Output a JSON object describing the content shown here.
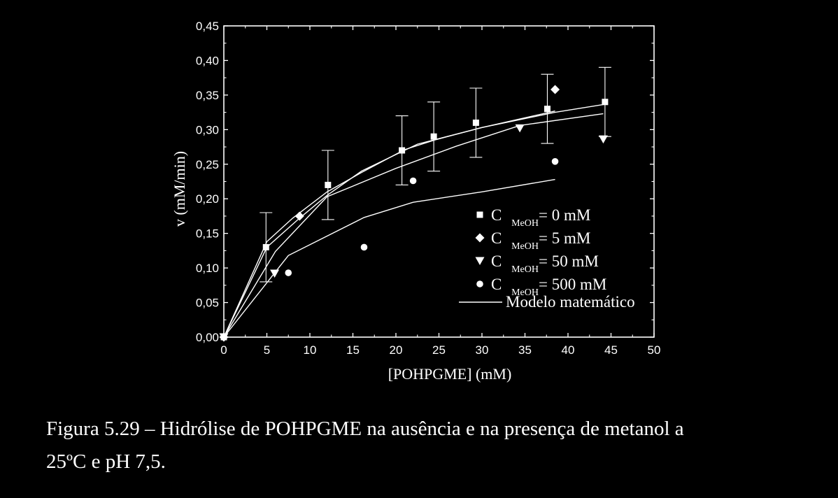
{
  "chart_data": {
    "type": "scatter",
    "xlabel": "[POHPGME] (mM)",
    "ylabel": "v (mM/min)",
    "xlim": [
      0,
      50
    ],
    "ylim": [
      0,
      0.45
    ],
    "xticks": [
      0,
      5,
      10,
      15,
      20,
      25,
      30,
      35,
      40,
      45,
      50
    ],
    "yticks": [
      0,
      0.05,
      0.1,
      0.15,
      0.2,
      0.25,
      0.3,
      0.35,
      0.4,
      0.45
    ],
    "xtick_labels": [
      "0",
      "5",
      "10",
      "15",
      "20",
      "25",
      "30",
      "35",
      "40",
      "45",
      "50"
    ],
    "ytick_labels": [
      "0,00",
      "0,05",
      "0,10",
      "0,15",
      "0,20",
      "0,25",
      "0,30",
      "0,35",
      "0,40",
      "0,45"
    ],
    "grid": false,
    "legend_position": "bottom-right",
    "series": [
      {
        "label_main": "C ",
        "label_sub": "MeOH",
        "label_rest": "= 0 mM",
        "marker": "square",
        "x": [
          0,
          4.9,
          12.1,
          20.7,
          24.4,
          29.3,
          37.6,
          44.3
        ],
        "y": [
          0,
          0.13,
          0.22,
          0.27,
          0.29,
          0.31,
          0.33,
          0.34
        ],
        "error": [
          0,
          0.05,
          0.05,
          0.05,
          0.05,
          0.05,
          0.05,
          0.05
        ],
        "model_x": [
          0,
          5,
          8,
          12,
          16,
          21,
          24.5,
          30,
          38.5,
          44.5
        ],
        "model_y": [
          0,
          0.138,
          0.172,
          0.21,
          0.238,
          0.271,
          0.285,
          0.303,
          0.325,
          0.337
        ]
      },
      {
        "label_main": "C ",
        "label_sub": "MeOH",
        "label_rest": "= 5 mM",
        "marker": "diamond",
        "x": [
          0,
          8.8,
          38.5
        ],
        "y": [
          0,
          0.175,
          0.358
        ],
        "model_x": [
          0,
          5,
          8.8,
          12,
          16,
          22.5,
          30,
          38.5
        ],
        "model_y": [
          0,
          0.13,
          0.172,
          0.205,
          0.24,
          0.279,
          0.303,
          0.327
        ]
      },
      {
        "label_main": "C ",
        "label_sub": "MeOH",
        "label_rest": "= 50 mM",
        "marker": "triangle-down",
        "x": [
          0,
          5.9,
          34.4,
          44.1
        ],
        "y": [
          0,
          0.092,
          0.302,
          0.286
        ],
        "model_x": [
          0,
          6,
          12,
          20,
          27,
          34.4,
          44.1
        ],
        "model_y": [
          0,
          0.124,
          0.203,
          0.244,
          0.276,
          0.306,
          0.323
        ]
      },
      {
        "label_main": "C ",
        "label_sub": "MeOH",
        "label_rest": "= 500 mM",
        "marker": "circle",
        "x": [
          0,
          7.5,
          16.3,
          22.0,
          38.5
        ],
        "y": [
          0,
          0.093,
          0.13,
          0.226,
          0.254
        ],
        "model_x": [
          0,
          7.5,
          16.3,
          22,
          30,
          38.5
        ],
        "model_y": [
          0,
          0.118,
          0.173,
          0.195,
          0.21,
          0.228
        ]
      }
    ],
    "model_legend": "Modelo matemático"
  },
  "caption": {
    "line1": "Figura 5.29 – Hidrólise de POHPGME na ausência e na presença de metanol a",
    "line2": "25ºC e pH 7,5."
  }
}
